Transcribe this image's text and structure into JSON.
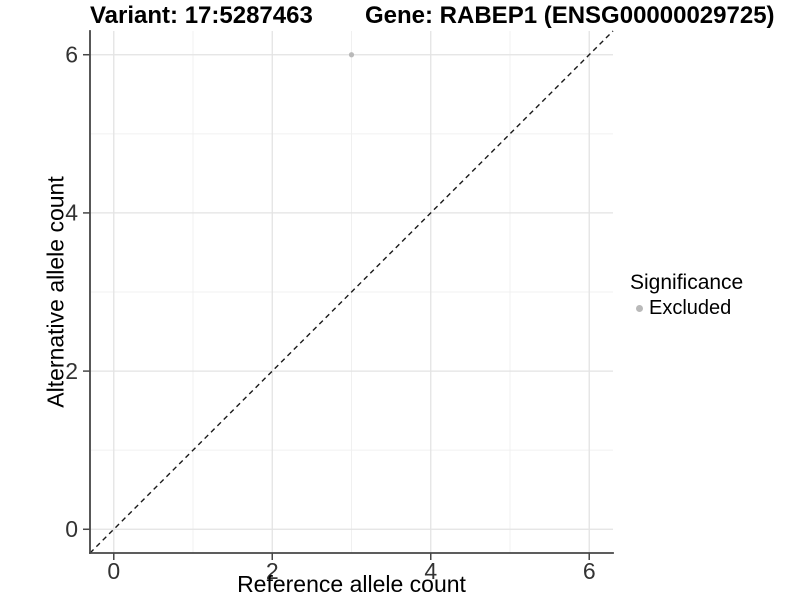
{
  "header": {
    "variant_title": "Variant: 17:5287463",
    "gene_title": "Gene: RABEP1 (ENSG00000029725)"
  },
  "legend": {
    "title": "Significance",
    "items": [
      {
        "label": "Excluded",
        "color": "#b9b9b9"
      }
    ]
  },
  "chart_data": {
    "type": "scatter",
    "title": "",
    "xlabel": "Reference allele count",
    "ylabel": "Alternative allele count",
    "xlim": [
      -0.3,
      6.3
    ],
    "ylim": [
      -0.3,
      6.3
    ],
    "x_major_ticks": [
      0,
      2,
      4,
      6
    ],
    "x_minor_ticks": [
      1,
      3,
      5
    ],
    "y_major_ticks": [
      0,
      2,
      4,
      6
    ],
    "y_minor_ticks": [
      1,
      3,
      5
    ],
    "grid": true,
    "legend_position": "right",
    "identity_line": {
      "slope": 1,
      "intercept": 0,
      "style": "dashed",
      "color": "#1a1a1a"
    },
    "series": [
      {
        "name": "Excluded",
        "color": "#b9b9b9",
        "point_radius": 2.6,
        "points": [
          {
            "x": 3,
            "y": 6
          }
        ]
      }
    ],
    "colors": {
      "major_grid": "#e3e3e3",
      "minor_grid": "#f0f0f0",
      "axis_line": "#464646",
      "tick_label": "#333333"
    }
  }
}
